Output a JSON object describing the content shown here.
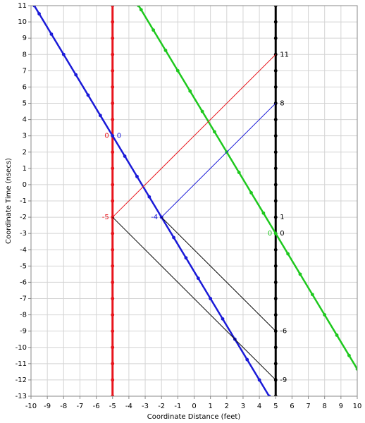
{
  "chart_data": {
    "type": "line",
    "x_label": "Coordinate Distance (feet)",
    "y_label": "Coordinate Time (nsecs)",
    "xlim": [
      -10,
      10
    ],
    "ylim": [
      -13,
      11
    ],
    "xticks": [
      -10,
      -9,
      -8,
      -7,
      -6,
      -5,
      -4,
      -3,
      -2,
      -1,
      0,
      1,
      2,
      3,
      4,
      5,
      6,
      7,
      8,
      9,
      10
    ],
    "yticks": [
      -13,
      -12,
      -11,
      -10,
      -9,
      -8,
      -7,
      -6,
      -5,
      -4,
      -3,
      -2,
      -1,
      0,
      1,
      2,
      3,
      4,
      5,
      6,
      7,
      8,
      9,
      10,
      11
    ],
    "grid": true,
    "series": [
      {
        "color": "#e8141c",
        "width": 3,
        "markers": true,
        "x": [
          -5,
          -5,
          -5,
          -5,
          -5,
          -5,
          -5,
          -5,
          -5,
          -5,
          -5,
          -5,
          -5,
          -5,
          -5,
          -5,
          -5,
          -5,
          -5,
          -5,
          -5,
          -5,
          -5,
          -5,
          -5
        ],
        "y": [
          -13,
          -12,
          -11,
          -10,
          -9,
          -8,
          -7,
          -6,
          -5,
          -4,
          -3,
          -2,
          -1,
          0,
          1,
          2,
          3,
          4,
          5,
          6,
          7,
          8,
          9,
          10,
          11
        ]
      },
      {
        "color": "#000000",
        "width": 3,
        "markers": true,
        "x": [
          5,
          5,
          5,
          5,
          5,
          5,
          5,
          5,
          5,
          5,
          5,
          5,
          5,
          5,
          5,
          5,
          5,
          5,
          5,
          5,
          5,
          5,
          5,
          5,
          5
        ],
        "y": [
          -13,
          -12,
          -11,
          -10,
          -9,
          -8,
          -7,
          -6,
          -5,
          -4,
          -3,
          -2,
          -1,
          0,
          1,
          2,
          3,
          4,
          5,
          6,
          7,
          8,
          9,
          10,
          11
        ]
      },
      {
        "color": "#1a1ad8",
        "width": 2.5,
        "markers": true,
        "x": [
          -9.8,
          -9.5,
          -8.75,
          -8,
          -7.25,
          -6.5,
          -5.75,
          -5,
          -4.25,
          -3.5,
          -2.75,
          -2,
          -1.25,
          -0.5,
          0.25,
          1,
          1.75,
          2.5,
          3.25,
          4,
          4.6
        ],
        "y": [
          11,
          10.5,
          9.25,
          8,
          6.75,
          5.5,
          4.25,
          3,
          1.75,
          0.5,
          -0.75,
          -2,
          -3.25,
          -4.5,
          -5.75,
          -7,
          -8.25,
          -9.5,
          -10.75,
          -12,
          -13
        ]
      },
      {
        "color": "#1ec81e",
        "width": 2.5,
        "markers": true,
        "x": [
          -3.4,
          -3.25,
          -2.5,
          -1.75,
          -1,
          -0.25,
          0.5,
          1.25,
          2,
          2.75,
          3.5,
          4.25,
          5,
          5.75,
          6.5,
          7.25,
          8,
          8.75,
          9.5,
          10
        ],
        "y": [
          11,
          10.75,
          9.5,
          8.25,
          7,
          5.75,
          4.5,
          3.25,
          2,
          0.75,
          -0.5,
          -1.75,
          -3,
          -4.25,
          -5.5,
          -6.75,
          -8,
          -9.25,
          -10.5,
          -11.33
        ]
      },
      {
        "color": "#e8141c",
        "width": 1,
        "markers": false,
        "x": [
          -5,
          5
        ],
        "y": [
          -2,
          8
        ]
      },
      {
        "color": "#1a1ad8",
        "width": 1,
        "markers": false,
        "x": [
          -2,
          5
        ],
        "y": [
          -2,
          5
        ]
      },
      {
        "color": "#000000",
        "width": 1,
        "markers": false,
        "x": [
          -5,
          5
        ],
        "y": [
          -2,
          -12
        ]
      },
      {
        "color": "#000000",
        "width": 1,
        "markers": false,
        "x": [
          -2,
          5
        ],
        "y": [
          -2,
          -9
        ]
      }
    ],
    "annotations": [
      {
        "text": "0",
        "x": -5,
        "y": 3,
        "color": "#e8141c",
        "side": "left"
      },
      {
        "text": "0",
        "x": -5,
        "y": 3,
        "color": "#1a1ad8",
        "side": "right"
      },
      {
        "text": "-5",
        "x": -5,
        "y": -2,
        "color": "#e8141c",
        "side": "left"
      },
      {
        "text": "-4",
        "x": -2,
        "y": -2,
        "color": "#1a1ad8",
        "side": "left"
      },
      {
        "text": "11",
        "x": 5,
        "y": 8,
        "color": "#000000",
        "side": "right"
      },
      {
        "text": "8",
        "x": 5,
        "y": 5,
        "color": "#000000",
        "side": "right"
      },
      {
        "text": "1",
        "x": 5,
        "y": -2,
        "color": "#000000",
        "side": "right"
      },
      {
        "text": "0",
        "x": 5,
        "y": -3,
        "color": "#1ec81e",
        "side": "left"
      },
      {
        "text": "0",
        "x": 5,
        "y": -3,
        "color": "#000000",
        "side": "right"
      },
      {
        "text": "-6",
        "x": 5,
        "y": -9,
        "color": "#000000",
        "side": "right"
      },
      {
        "text": "-9",
        "x": 5,
        "y": -12,
        "color": "#000000",
        "side": "right"
      }
    ]
  }
}
